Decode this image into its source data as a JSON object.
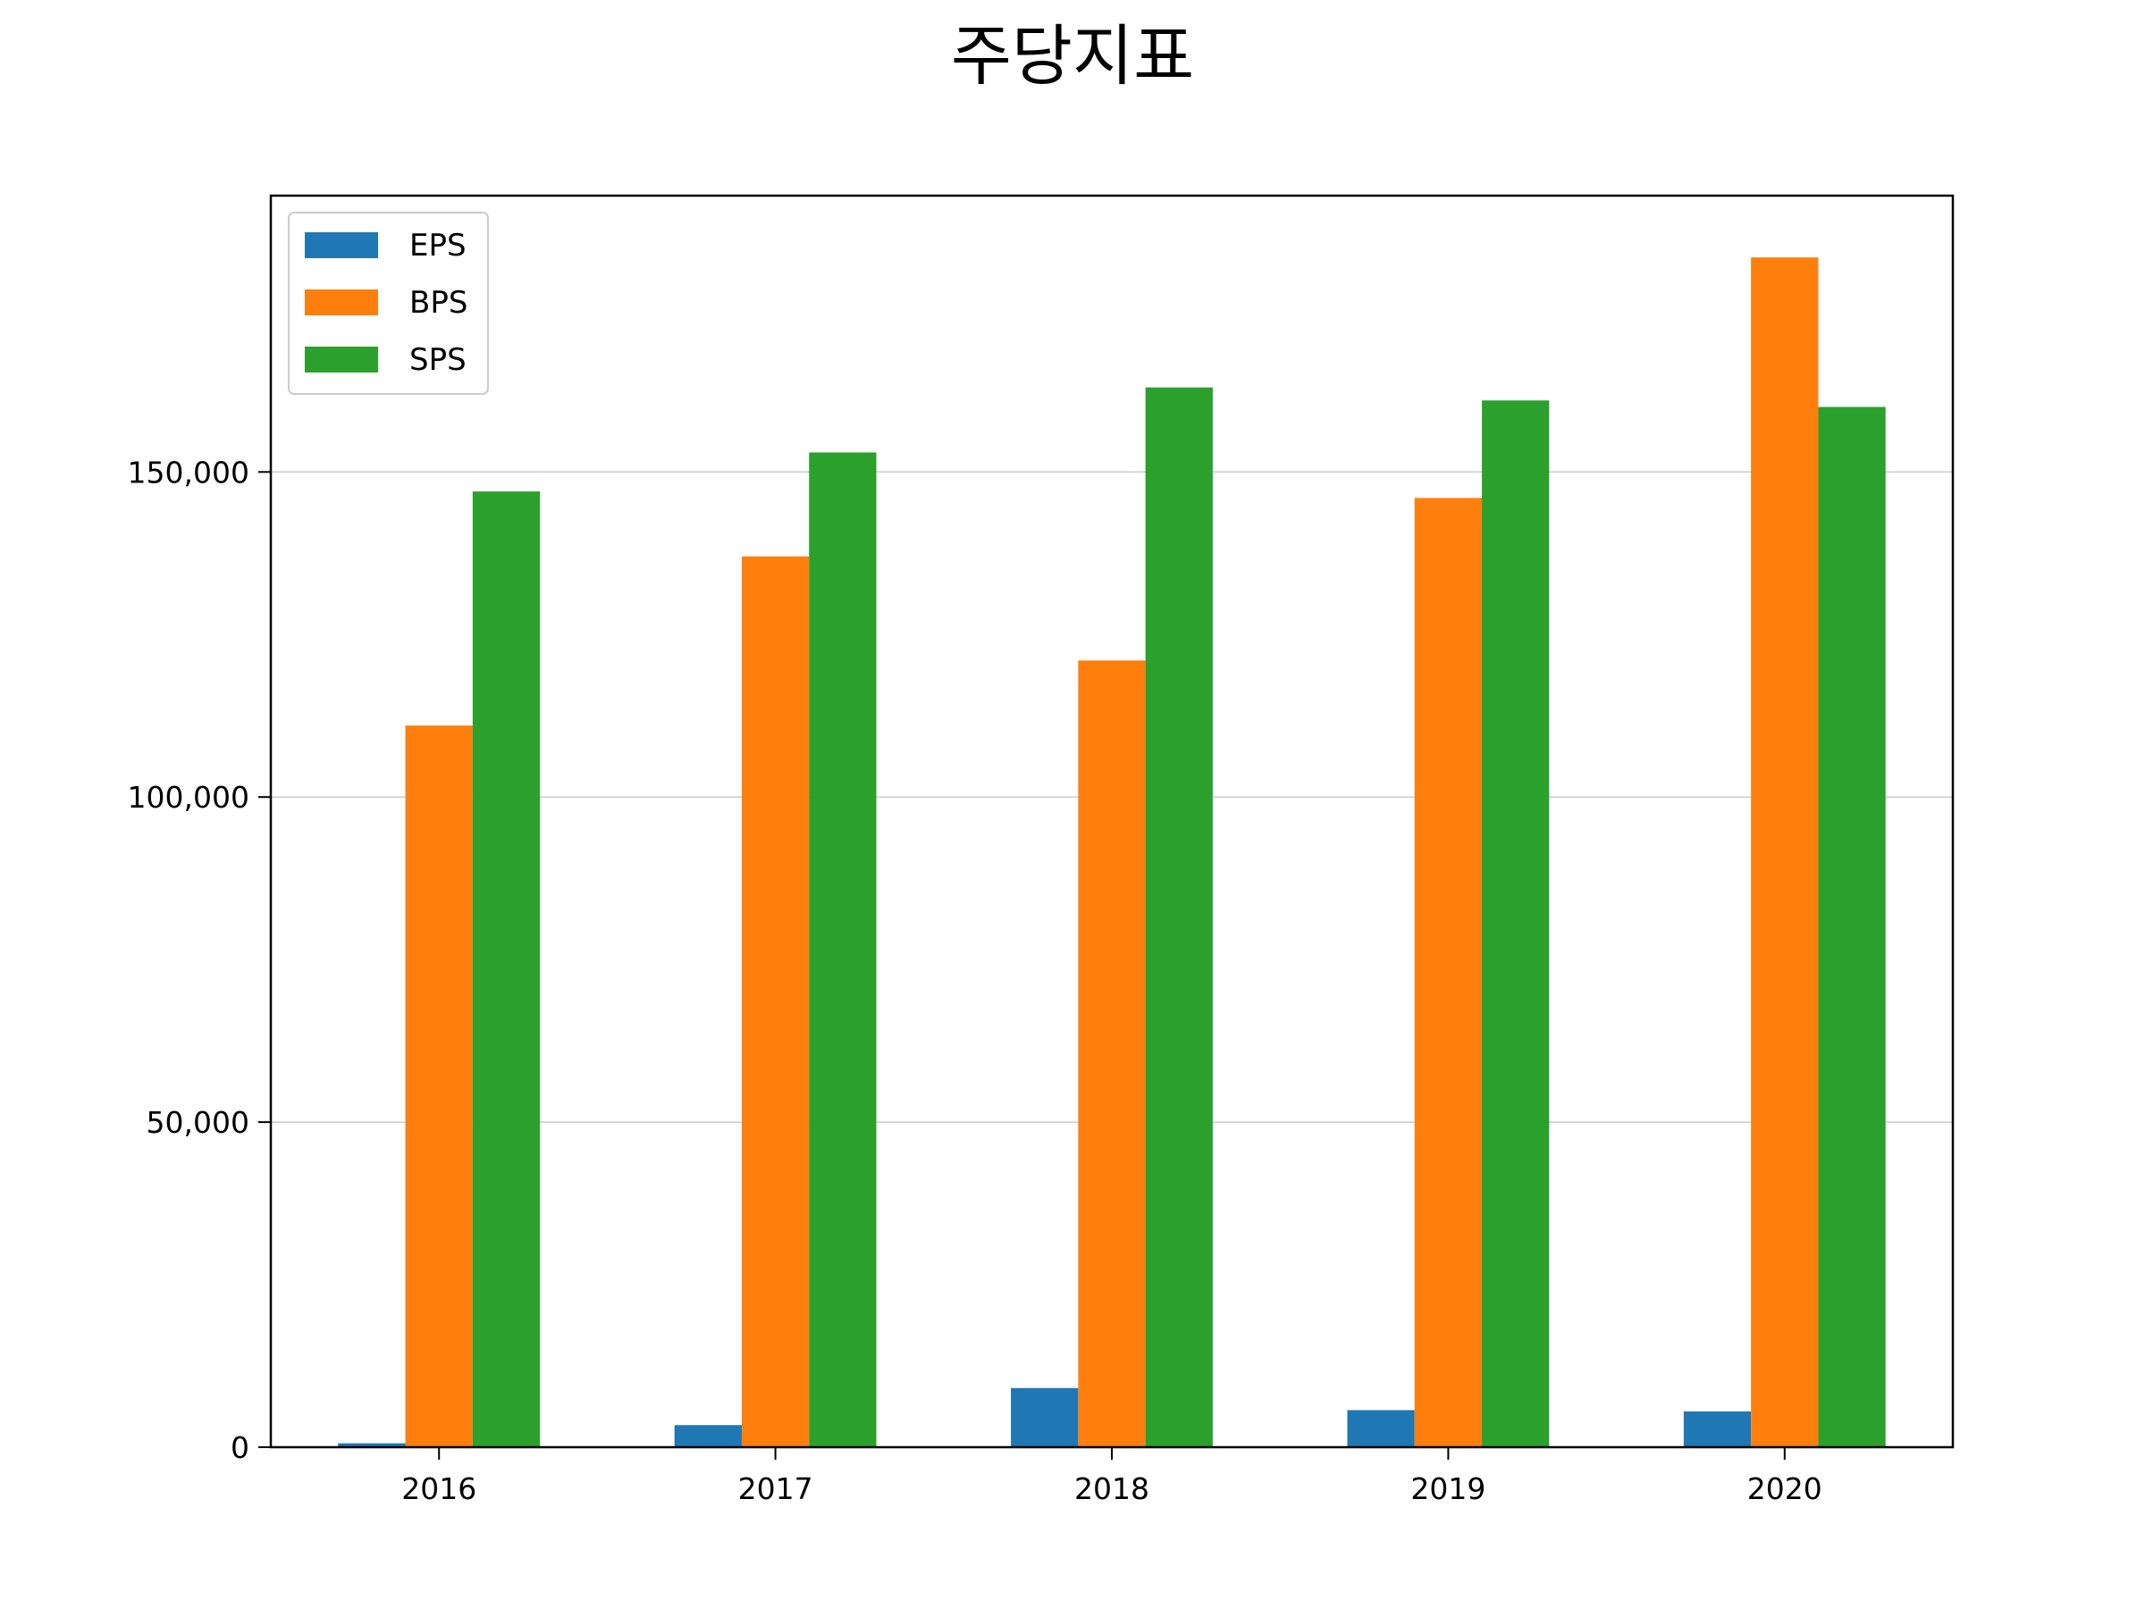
{
  "chart_data": {
    "type": "bar",
    "title": "주당지표",
    "xlabel": "",
    "ylabel": "",
    "categories": [
      "2016",
      "2017",
      "2018",
      "2019",
      "2020"
    ],
    "series": [
      {
        "name": "EPS",
        "color": "#1f77b4",
        "values": [
          600,
          3400,
          9100,
          5700,
          5500
        ]
      },
      {
        "name": "BPS",
        "color": "#ff7f0e",
        "values": [
          111000,
          137000,
          121000,
          146000,
          183000
        ]
      },
      {
        "name": "SPS",
        "color": "#2ca02c",
        "values": [
          147000,
          153000,
          163000,
          161000,
          160000
        ]
      }
    ],
    "ylim": [
      0,
      192500
    ],
    "yticks": [
      0,
      50000,
      100000,
      150000
    ],
    "ytick_labels": [
      "0",
      "50,000",
      "100,000",
      "150,000"
    ],
    "grid": "y",
    "legend": "top-left"
  }
}
